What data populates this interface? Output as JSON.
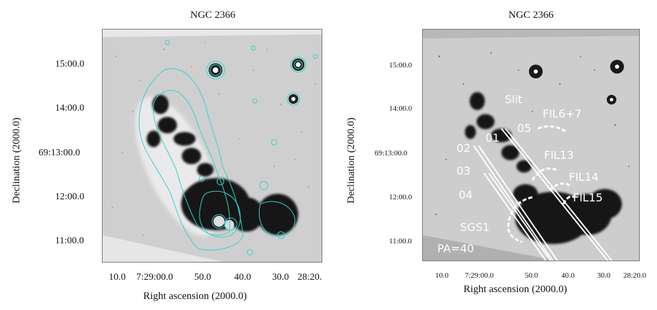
{
  "left": {
    "title": "NGC 2366",
    "ylabel": "Declination (2000.0)",
    "xlabel": "Right ascension (2000.0)",
    "yticks": [
      "15:00.0",
      "14:00.0",
      "69:13:00.0",
      "12:00.0",
      "11:00.0"
    ],
    "xticks": [
      "10.0",
      "7:29:00.0",
      "50.0",
      "40.0",
      "30.0",
      "28:20."
    ]
  },
  "right": {
    "title": "NGC 2366",
    "ylabel": "Declination (2000.0)",
    "xlabel": "Right ascension (2000.0)",
    "yticks": [
      "15:00.0",
      "14:00.0",
      "69:13:00.0",
      "12:00.0",
      "11:00.0"
    ],
    "xticks": [
      "10.0",
      "7:29:00.0",
      "50.0",
      "40.0",
      "30.0",
      "28:20.0"
    ],
    "annotations": {
      "slit": "Slit",
      "s01": "01",
      "s02": "02",
      "s03": "03",
      "s04": "04",
      "s05": "05",
      "fil67": "FIL6+7",
      "fil13": "FIL13",
      "fil14": "FIL14",
      "fil15": "FIL15",
      "sgs1": "SGS1",
      "pa": "PA=40"
    }
  },
  "colors": {
    "contour": "#2fd3d3",
    "background": "#c9c9c9",
    "annotation": "#ffffff"
  }
}
